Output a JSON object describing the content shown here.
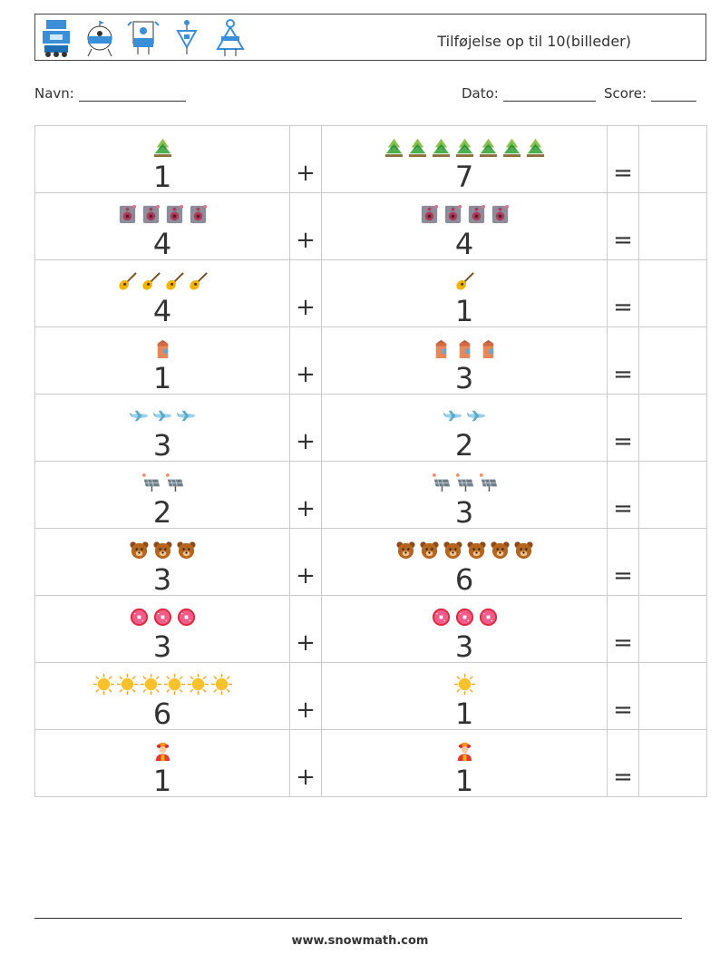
{
  "header": {
    "title": "Tilføjelse op til 10(billeder)",
    "robot_icons": [
      "robot-1-icon",
      "robot-2-icon",
      "robot-3-icon",
      "robot-4-icon",
      "robot-5-icon"
    ]
  },
  "info": {
    "name_label": "Navn:",
    "date_label": "Dato:",
    "score_label": "Score:"
  },
  "operator": "+",
  "equals": "=",
  "rows": [
    {
      "left_icon": "tree-icon",
      "left": "1",
      "right_icon": "tree-icon",
      "right": "7"
    },
    {
      "left_icon": "speaker-icon",
      "left": "4",
      "right_icon": "speaker-icon",
      "right": "4"
    },
    {
      "left_icon": "guitar-icon",
      "left": "4",
      "right_icon": "guitar-icon",
      "right": "1"
    },
    {
      "left_icon": "milk-carton-icon",
      "left": "1",
      "right_icon": "milk-carton-icon",
      "right": "3"
    },
    {
      "left_icon": "airplane-icon",
      "left": "3",
      "right_icon": "airplane-icon",
      "right": "2"
    },
    {
      "left_icon": "solar-panel-icon",
      "left": "2",
      "right_icon": "solar-panel-icon",
      "right": "3"
    },
    {
      "left_icon": "bear-icon",
      "left": "3",
      "right_icon": "bear-icon",
      "right": "6"
    },
    {
      "left_icon": "donut-icon",
      "left": "3",
      "right_icon": "donut-icon",
      "right": "3"
    },
    {
      "left_icon": "sun-icon",
      "left": "6",
      "right_icon": "sun-icon",
      "right": "1"
    },
    {
      "left_icon": "firefighter-icon",
      "left": "1",
      "right_icon": "firefighter-icon",
      "right": "1"
    }
  ],
  "footer": "www.snowmath.com"
}
